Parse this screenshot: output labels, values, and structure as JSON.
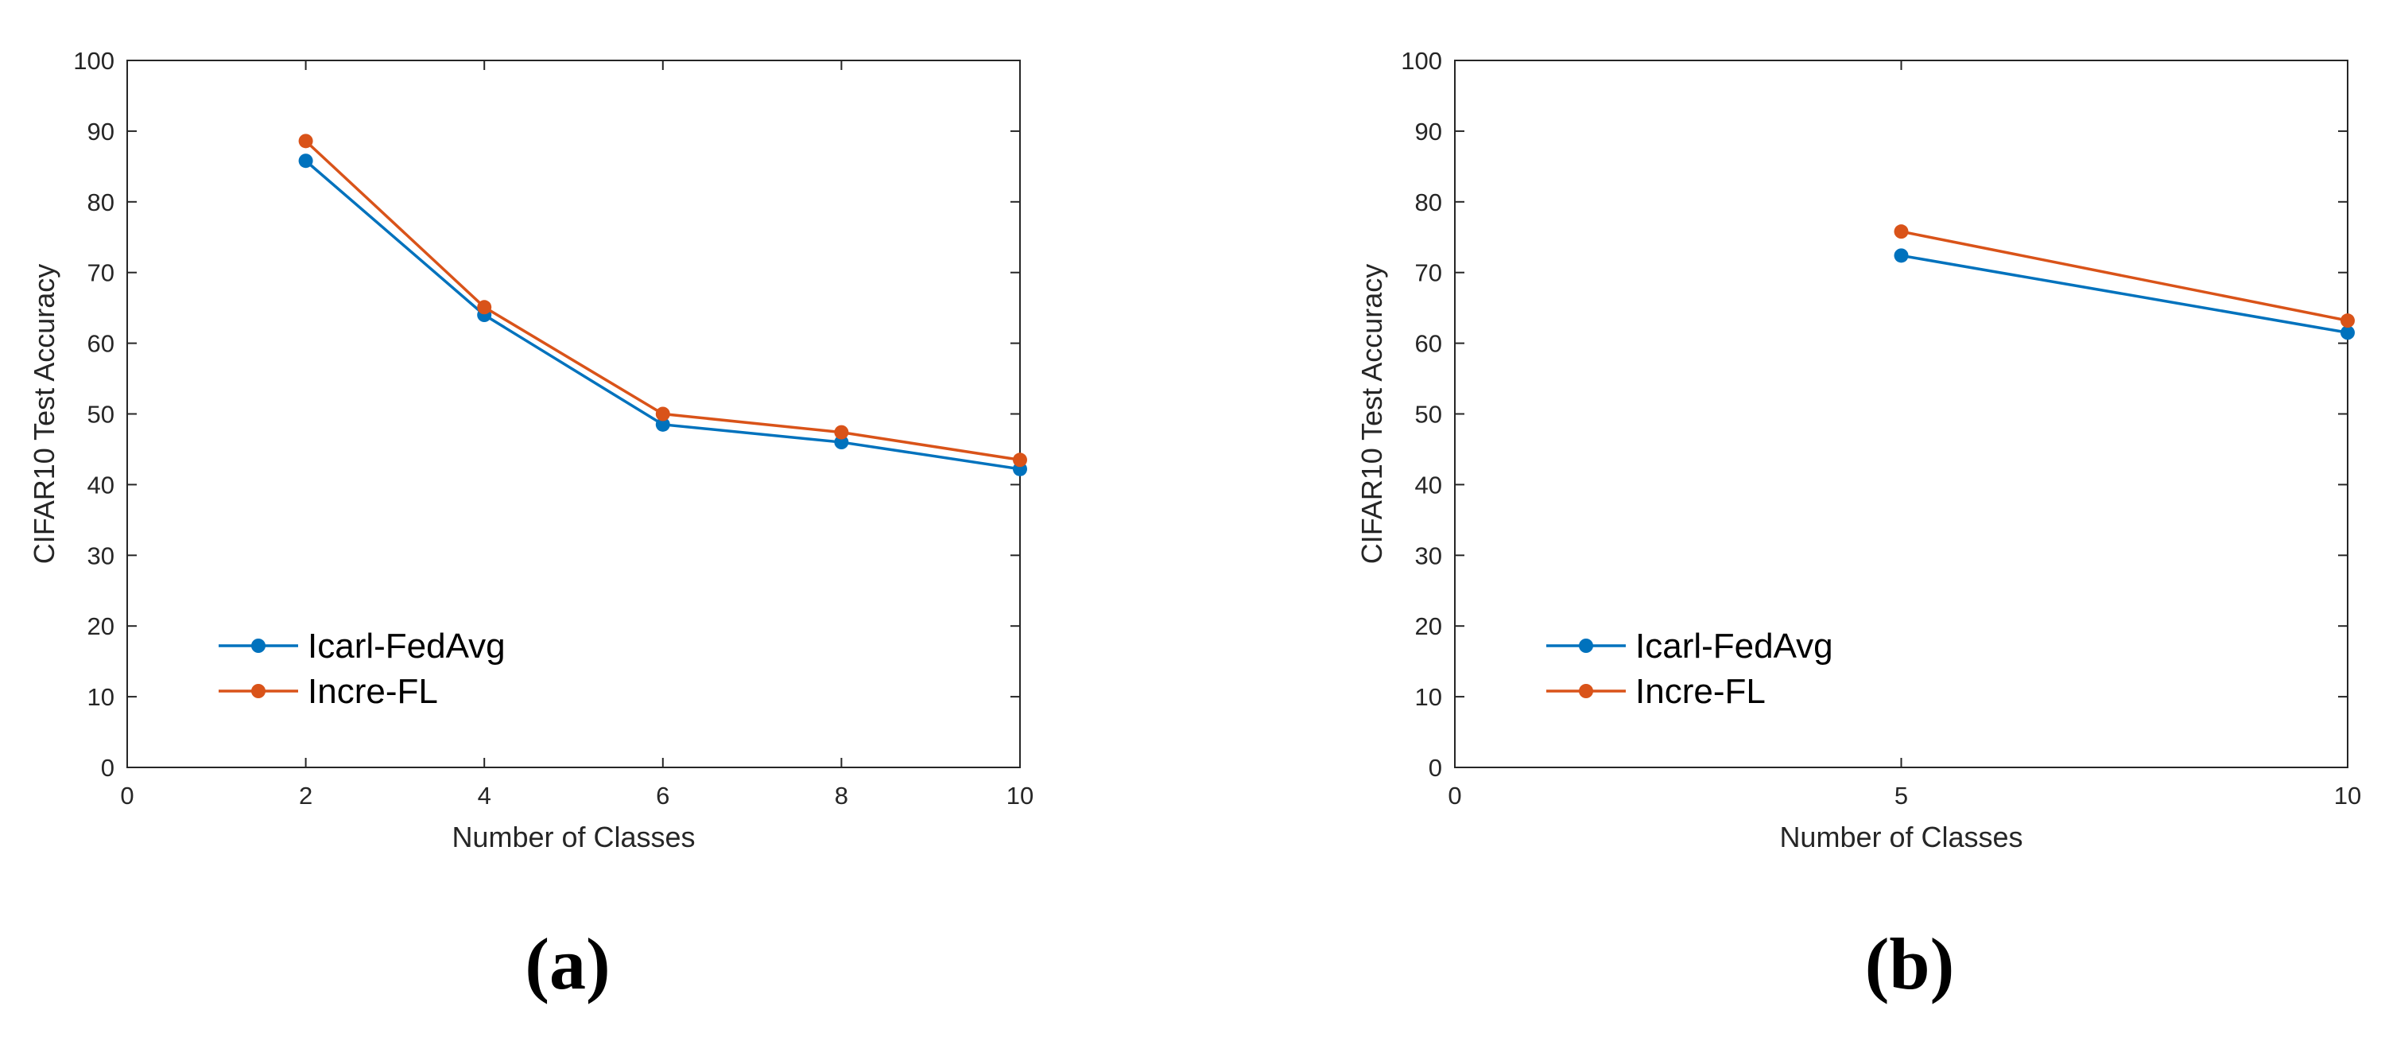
{
  "chart_data": [
    {
      "type": "line",
      "panel": "(a)",
      "x": [
        2,
        4,
        6,
        8,
        10
      ],
      "series": [
        {
          "name": "Icarl-FedAvg",
          "color": "#0072BD",
          "values": [
            85.8,
            64.0,
            48.5,
            46.0,
            42.2
          ]
        },
        {
          "name": "Incre-FL",
          "color": "#D95319",
          "values": [
            88.6,
            65.1,
            50.0,
            47.4,
            43.5
          ]
        }
      ],
      "xlabel": "Number of Classes",
      "ylabel": "CIFAR10 Test Accuracy",
      "xlim": [
        0,
        10
      ],
      "ylim": [
        0,
        100
      ],
      "xticks": [
        0,
        2,
        4,
        6,
        8,
        10
      ],
      "yticks": [
        0,
        10,
        20,
        30,
        40,
        50,
        60,
        70,
        80,
        90,
        100
      ],
      "legend_position": "bottom-left",
      "grid": false
    },
    {
      "type": "line",
      "panel": "(b)",
      "x": [
        5,
        10
      ],
      "series": [
        {
          "name": "Icarl-FedAvg",
          "color": "#0072BD",
          "values": [
            72.4,
            61.5
          ]
        },
        {
          "name": "Incre-FL",
          "color": "#D95319",
          "values": [
            75.8,
            63.2
          ]
        }
      ],
      "xlabel": "Number of Classes",
      "ylabel": "CIFAR10 Test Accuracy",
      "xlim": [
        0,
        10
      ],
      "ylim": [
        0,
        100
      ],
      "xticks": [
        0,
        5,
        10
      ],
      "yticks": [
        0,
        10,
        20,
        30,
        40,
        50,
        60,
        70,
        80,
        90,
        100
      ],
      "legend_position": "bottom-left",
      "grid": false
    }
  ]
}
